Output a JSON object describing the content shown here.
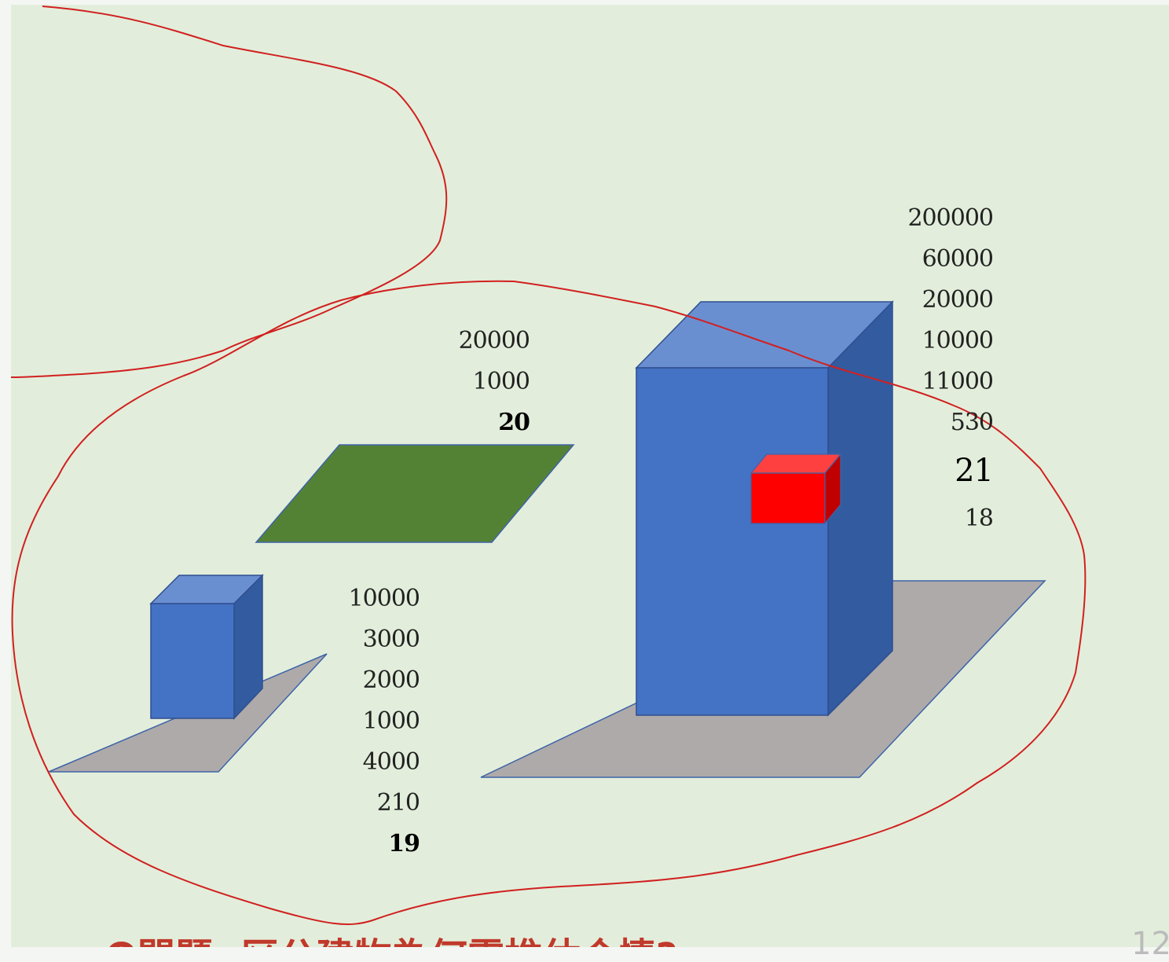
{
  "left_building": {
    "values": [
      "10000",
      "3000",
      "2000",
      "1000",
      "4000",
      "210"
    ],
    "total": "19"
  },
  "middle_lot": {
    "values": [
      "20000",
      "1000"
    ],
    "total": "20"
  },
  "right_building": {
    "values": [
      "200000",
      "60000",
      "20000",
      "10000",
      "11000",
      "530"
    ],
    "total": "21",
    "extra": "18"
  },
  "caption": "Q問題: 区公建物為何需推估合情?",
  "page_number": "12",
  "colors": {
    "background": "#e2eedb",
    "building_blue": "#4472c4",
    "lot_green": "#548235",
    "ground_gray": "#aeaaaa",
    "highlight_red": "#ff0000",
    "annotation_red": "#d12020"
  }
}
